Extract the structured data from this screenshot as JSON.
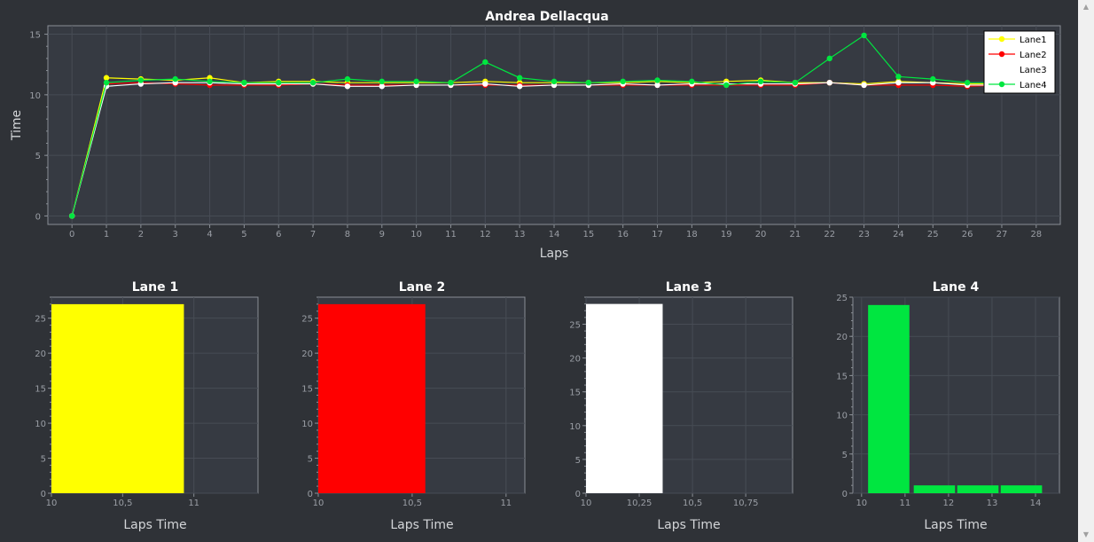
{
  "colors": {
    "background": "#2f3237",
    "plot_bg": "#363a42",
    "grid": "#474c55",
    "axis": "#8a8f96",
    "text": "#ffffff",
    "tick_text": "#9a9ea5",
    "label_text": "#d3d5d8",
    "lane1": "#ffff00",
    "lane2": "#ff0000",
    "lane3": "#ffffff",
    "lane4": "#00e640"
  },
  "chart_data": [
    {
      "id": "laps-line",
      "type": "line",
      "title": "Andrea Dellacqua",
      "xlabel": "Laps",
      "ylabel": "Time",
      "xlim": [
        -0.7,
        28.7
      ],
      "ylim": [
        -0.7,
        15.7
      ],
      "xticks": [
        "0",
        "1",
        "2",
        "3",
        "4",
        "5",
        "6",
        "7",
        "8",
        "9",
        "10",
        "11",
        "12",
        "13",
        "14",
        "15",
        "16",
        "17",
        "18",
        "19",
        "20",
        "21",
        "22",
        "23",
        "24",
        "25",
        "26",
        "27",
        "28"
      ],
      "yticks": [
        "0",
        "5",
        "10",
        "15"
      ],
      "ytick_values": [
        0,
        5,
        10,
        15
      ],
      "grid": true,
      "legend": "top-right",
      "x": [
        0,
        1,
        2,
        3,
        4,
        5,
        6,
        7,
        8,
        9,
        10,
        11,
        12,
        13,
        14,
        15,
        16,
        17,
        18,
        19,
        20,
        21,
        22,
        23,
        24,
        25,
        26,
        27
      ],
      "series": [
        {
          "name": "Lane1",
          "color": "#ffff00",
          "values": [
            0,
            11.4,
            11.3,
            11.2,
            11.4,
            11.0,
            11.1,
            11.1,
            11.0,
            11.0,
            11.0,
            11.0,
            11.1,
            11.0,
            11.0,
            11.0,
            11.0,
            11.1,
            11.0,
            11.1,
            11.2,
            11.0,
            11.0,
            10.9,
            11.1,
            11.0,
            10.9,
            10.9
          ]
        },
        {
          "name": "Lane2",
          "color": "#ff0000",
          "values": [
            0,
            10.9,
            11.0,
            10.9,
            10.8,
            10.8,
            10.8,
            10.9,
            10.8,
            10.8,
            10.8,
            10.8,
            10.8,
            10.8,
            10.8,
            10.8,
            10.8,
            10.8,
            10.8,
            10.8,
            10.8,
            10.8,
            11.0,
            10.8,
            10.8,
            10.8,
            10.7,
            10.8
          ]
        },
        {
          "name": "Lane3",
          "color": "#ffffff",
          "values": [
            0,
            10.7,
            10.9,
            11.0,
            11.0,
            10.9,
            10.9,
            10.9,
            10.7,
            10.7,
            10.8,
            10.8,
            10.9,
            10.7,
            10.8,
            10.8,
            10.9,
            10.8,
            10.9,
            10.9,
            10.9,
            10.9,
            11.0,
            10.8,
            11.0,
            11.0,
            10.8,
            10.8
          ]
        },
        {
          "name": "Lane4",
          "color": "#00e640",
          "values": [
            0,
            11.0,
            11.2,
            11.3,
            11.1,
            11.0,
            11.0,
            11.0,
            11.3,
            11.1,
            11.1,
            11.0,
            12.7,
            11.4,
            11.1,
            11.0,
            11.1,
            11.2,
            11.1,
            10.8,
            11.1,
            11.0,
            13.0,
            14.9,
            11.5,
            11.3,
            11.0,
            11.0
          ]
        }
      ]
    },
    {
      "id": "lane-1-hist",
      "type": "bar",
      "title": "Lane 1",
      "xlabel": "Laps Time",
      "color": "#ffff00",
      "xlim": [
        10,
        11.45
      ],
      "ylim": [
        0,
        28
      ],
      "xticks": [
        "10",
        "10,5",
        "11"
      ],
      "xtick_values": [
        10,
        10.5,
        11
      ],
      "yticks": [
        "0",
        "5",
        "10",
        "15",
        "20",
        "25"
      ],
      "ytick_values": [
        0,
        5,
        10,
        15,
        20,
        25
      ],
      "bins": [
        [
          10.0,
          10.93
        ]
      ],
      "values": [
        27
      ]
    },
    {
      "id": "lane-2-hist",
      "type": "bar",
      "title": "Lane 2",
      "xlabel": "Laps Time",
      "color": "#ff0000",
      "xlim": [
        10,
        11.1
      ],
      "ylim": [
        0,
        28
      ],
      "xticks": [
        "10",
        "10,5",
        "11"
      ],
      "xtick_values": [
        10,
        10.5,
        11
      ],
      "yticks": [
        "0",
        "5",
        "10",
        "15",
        "20",
        "25"
      ],
      "ytick_values": [
        0,
        5,
        10,
        15,
        20,
        25
      ],
      "bins": [
        [
          10.0,
          10.57
        ]
      ],
      "values": [
        27
      ]
    },
    {
      "id": "lane-3-hist",
      "type": "bar",
      "title": "Lane 3",
      "xlabel": "Laps Time",
      "color": "#ffffff",
      "xlim": [
        10,
        10.97
      ],
      "ylim": [
        0,
        29
      ],
      "xticks": [
        "10",
        "10,25",
        "10,5",
        "10,75"
      ],
      "xtick_values": [
        10,
        10.25,
        10.5,
        10.75
      ],
      "yticks": [
        "0",
        "5",
        "10",
        "15",
        "20",
        "25"
      ],
      "ytick_values": [
        0,
        5,
        10,
        15,
        20,
        25
      ],
      "bins": [
        [
          10.0,
          10.36
        ]
      ],
      "values": [
        28
      ]
    },
    {
      "id": "lane-4-hist",
      "type": "bar",
      "title": "Lane 4",
      "xlabel": "Laps Time",
      "color": "#00e640",
      "xlim": [
        9.8,
        14.55
      ],
      "ylim": [
        0,
        25
      ],
      "xticks": [
        "10",
        "11",
        "12",
        "13",
        "14"
      ],
      "xtick_values": [
        10,
        11,
        12,
        13,
        14
      ],
      "yticks": [
        "0",
        "5",
        "10",
        "15",
        "20",
        "25"
      ],
      "ytick_values": [
        0,
        5,
        10,
        15,
        20,
        25
      ],
      "bins": [
        [
          10.15,
          11.1
        ],
        [
          11.2,
          12.15
        ],
        [
          12.2,
          13.15
        ],
        [
          13.2,
          14.15
        ]
      ],
      "values": [
        24,
        1,
        1,
        1
      ]
    }
  ]
}
